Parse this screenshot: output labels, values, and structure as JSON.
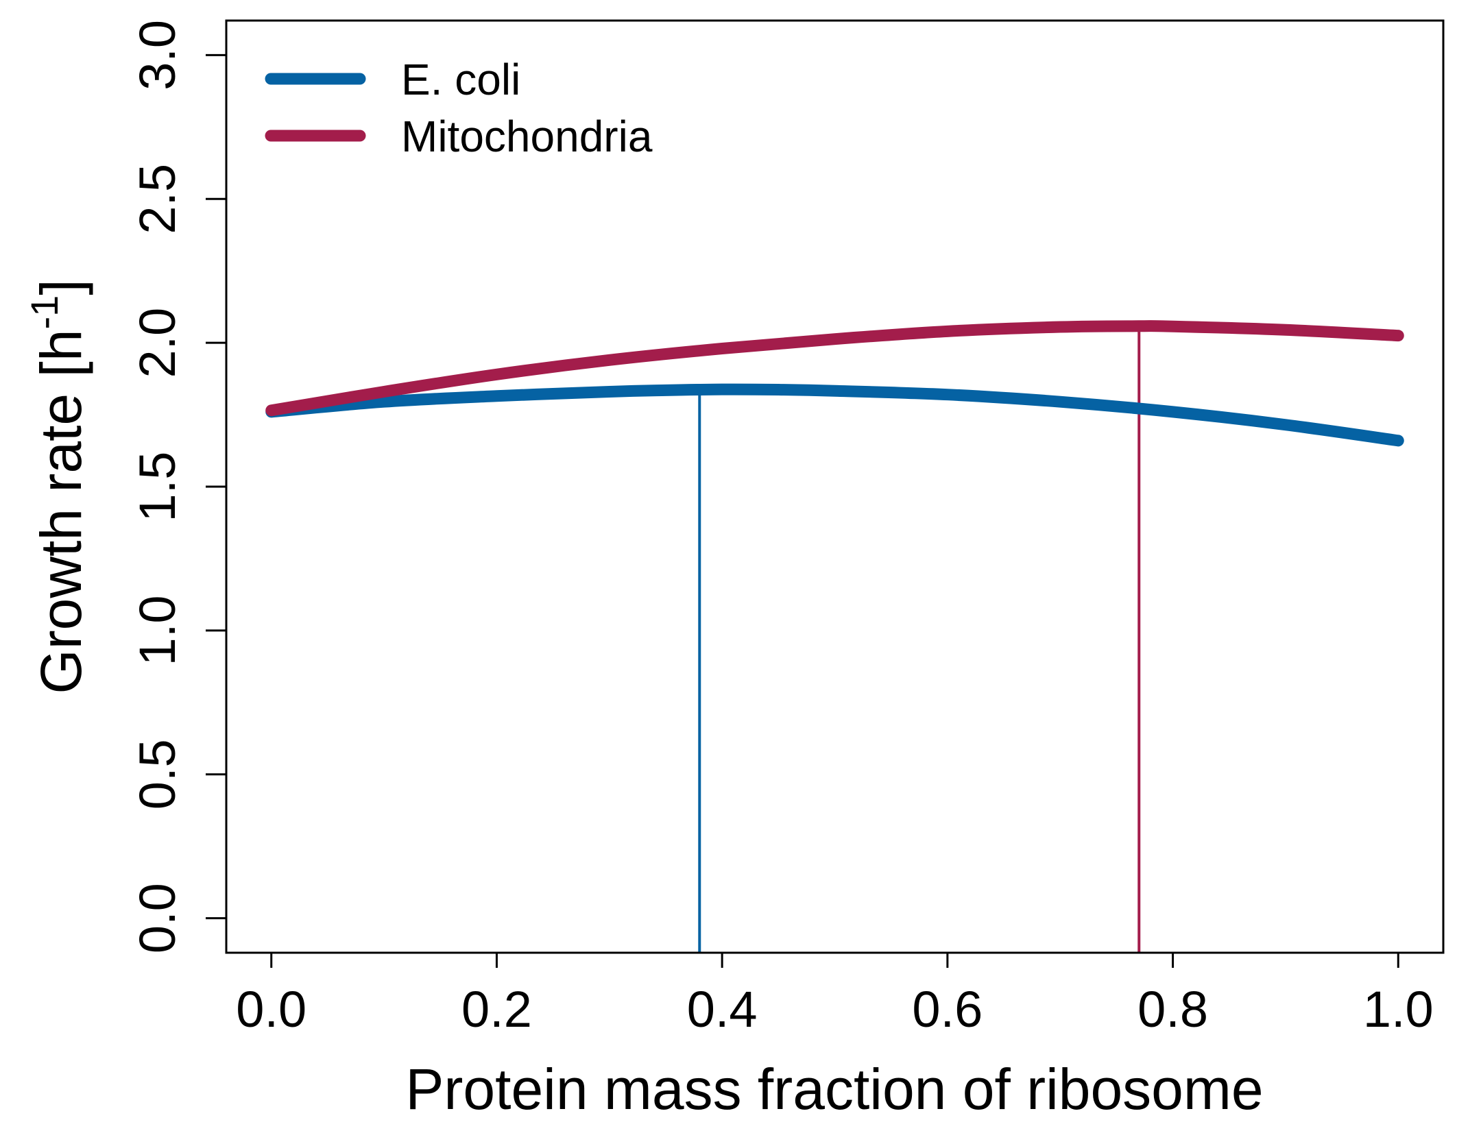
{
  "chart_data": {
    "type": "line",
    "title": "",
    "xlabel": "Protein mass fraction of ribosome",
    "ylabel_main": "Growth rate [h",
    "ylabel_sup": "-1",
    "ylabel_end": "]",
    "xlim": [
      -0.04,
      1.04
    ],
    "ylim": [
      -0.12,
      3.12
    ],
    "xticks": [
      0.0,
      0.2,
      0.4,
      0.6,
      0.8,
      1.0
    ],
    "xtick_labels": [
      "0.0",
      "0.2",
      "0.4",
      "0.6",
      "0.8",
      "1.0"
    ],
    "yticks": [
      0.0,
      0.5,
      1.0,
      1.5,
      2.0,
      2.5,
      3.0
    ],
    "ytick_labels": [
      "0.0",
      "0.5",
      "1.0",
      "1.5",
      "2.0",
      "2.5",
      "3.0"
    ],
    "grid": false,
    "legend_position": "top-left",
    "series": [
      {
        "name": "E. coli",
        "color": "#0562a3",
        "x": [
          0.0,
          0.1,
          0.2,
          0.3,
          0.35,
          0.4,
          0.45,
          0.5,
          0.6,
          0.7,
          0.8,
          0.9,
          1.0
        ],
        "y": [
          1.76,
          1.795,
          1.815,
          1.83,
          1.835,
          1.838,
          1.837,
          1.833,
          1.82,
          1.795,
          1.76,
          1.715,
          1.66
        ],
        "optimum_x": 0.38
      },
      {
        "name": "Mitochondria",
        "color": "#a31d4b",
        "x": [
          0.0,
          0.1,
          0.2,
          0.3,
          0.4,
          0.5,
          0.6,
          0.7,
          0.77,
          0.8,
          0.9,
          1.0
        ],
        "y": [
          1.765,
          1.83,
          1.89,
          1.94,
          1.98,
          2.013,
          2.04,
          2.055,
          2.058,
          2.057,
          2.045,
          2.025
        ],
        "optimum_x": 0.77
      }
    ]
  }
}
